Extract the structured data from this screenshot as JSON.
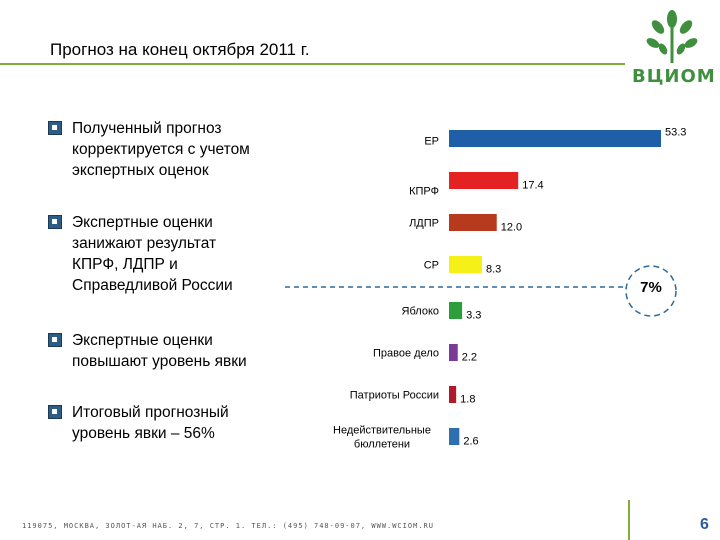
{
  "title": "Прогноз  на конец октября 2011 г.",
  "logo_text": "ВЦИОМ",
  "bullets": [
    "Полученный прогноз\nкорректируется с учетом\nэкспертных оценок",
    " Экспертные оценки\nзанижают результат\nКПРФ, ЛДПР и\nСправедливой России",
    " Экспертные оценки\nповышают уровень явки",
    "Итоговый прогнозный\nуровень явки – 56%"
  ],
  "threshold_label": "7%",
  "footer": "119075, МОСКВА, ЗОЛОТ-АЯ НАБ. 2, 7, СТР. 1. ТЕЛ.: (495) 748-09-07, WWW.WCIOM.RU",
  "page_number": "6",
  "colors": {
    "title_line": "#7fae3a",
    "threshold_line": "#2a6a9e",
    "circle": "#2a6a9e"
  },
  "chart_data": {
    "type": "bar",
    "orientation": "horizontal",
    "title": "",
    "xlabel": "",
    "ylabel": "",
    "xlim": [
      0,
      53.3
    ],
    "threshold": 7,
    "categories": [
      "ЕР",
      "КПРФ",
      "ЛДПР",
      "СР",
      "Яблоко",
      "Правое дело",
      "Патриоты России",
      "Недействительные\nбюллетени"
    ],
    "values": [
      53.3,
      17.4,
      12.0,
      8.3,
      3.3,
      2.2,
      1.8,
      2.6
    ],
    "value_labels": [
      "53.3",
      "17.4",
      "12.0",
      "8.3",
      "3.3",
      "2.2",
      "1.8",
      "2.6"
    ],
    "bar_colors": [
      "#1f5fa8",
      "#e52222",
      "#b73a1e",
      "#f5f017",
      "#2e9e3c",
      "#7b3a96",
      "#b01a2a",
      "#2e6fb0"
    ]
  }
}
